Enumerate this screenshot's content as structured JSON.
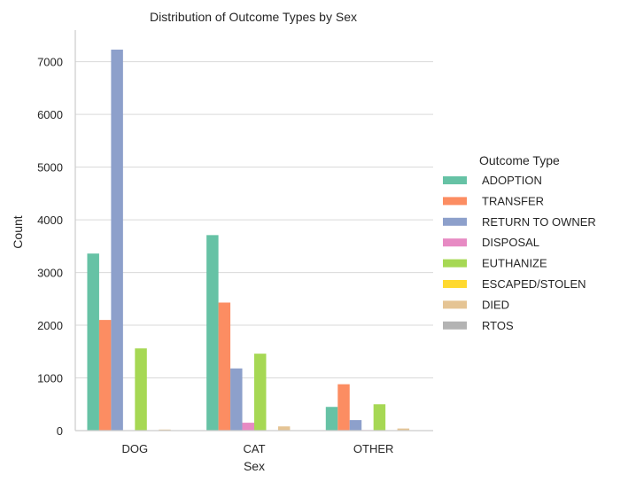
{
  "chart_data": {
    "type": "bar",
    "title": "Distribution of Outcome Types by Sex",
    "xlabel": "Sex",
    "ylabel": "Count",
    "categories": [
      "DOG",
      "CAT",
      "OTHER"
    ],
    "ylim": [
      0,
      7600
    ],
    "yticks": [
      0,
      1000,
      2000,
      3000,
      4000,
      5000,
      6000,
      7000
    ],
    "grid": "horizontal",
    "legend": {
      "title": "Outcome Type",
      "position": "right"
    },
    "series": [
      {
        "name": "ADOPTION",
        "color": "#66c2a5",
        "values": [
          3360,
          3710,
          450
        ]
      },
      {
        "name": "TRANSFER",
        "color": "#fc8d62",
        "values": [
          2100,
          2430,
          880
        ]
      },
      {
        "name": "RETURN TO OWNER",
        "color": "#8da0cb",
        "values": [
          7230,
          1180,
          200
        ]
      },
      {
        "name": "DISPOSAL",
        "color": "#e78ac3",
        "values": [
          5,
          150,
          10
        ]
      },
      {
        "name": "EUTHANIZE",
        "color": "#a6d854",
        "values": [
          1560,
          1460,
          500
        ]
      },
      {
        "name": "ESCAPED/STOLEN",
        "color": "#ffd92f",
        "values": [
          2,
          3,
          1
        ]
      },
      {
        "name": "DIED",
        "color": "#e5c494",
        "values": [
          20,
          80,
          40
        ]
      },
      {
        "name": "RTOS",
        "color": "#b3b3b3",
        "values": [
          2,
          1,
          1
        ]
      }
    ]
  }
}
